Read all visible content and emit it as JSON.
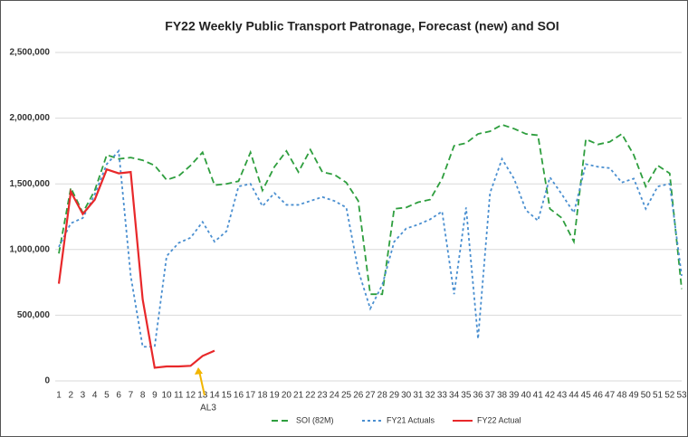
{
  "chart_data": {
    "type": "line",
    "title": "FY22 Weekly Public Transport Patronage,  Forecast (new) and SOI",
    "x": [
      1,
      2,
      3,
      4,
      5,
      6,
      7,
      8,
      9,
      10,
      11,
      12,
      13,
      14,
      15,
      16,
      17,
      18,
      19,
      20,
      21,
      22,
      23,
      24,
      25,
      26,
      27,
      28,
      29,
      30,
      31,
      32,
      33,
      34,
      35,
      36,
      37,
      38,
      39,
      40,
      41,
      42,
      43,
      44,
      45,
      46,
      47,
      48,
      49,
      50,
      51,
      52,
      53
    ],
    "xlim": [
      1,
      53
    ],
    "ylim": [
      0,
      2500000
    ],
    "yticks": [
      0,
      {
        "value": 500000,
        "label": "500,000"
      },
      {
        "value": 1000000,
        "label": "1,000,000"
      },
      {
        "value": 1500000,
        "label": "1,500,000"
      },
      {
        "value": 2000000,
        "label": "2,000,000"
      },
      {
        "value": 2500000,
        "label": "2,500,000"
      }
    ],
    "grid": true,
    "legend": "bottom",
    "series": [
      {
        "name": "SOI (82M)",
        "color": "#2e9e3e",
        "dash": "dashed",
        "values": [
          970000,
          1470000,
          1280000,
          1450000,
          1720000,
          1690000,
          1700000,
          1680000,
          1640000,
          1530000,
          1560000,
          1640000,
          1740000,
          1490000,
          1500000,
          1520000,
          1740000,
          1450000,
          1630000,
          1750000,
          1590000,
          1760000,
          1590000,
          1570000,
          1510000,
          1370000,
          660000,
          660000,
          1310000,
          1320000,
          1360000,
          1380000,
          1540000,
          1790000,
          1810000,
          1880000,
          1900000,
          1950000,
          1920000,
          1880000,
          1870000,
          1310000,
          1240000,
          1060000,
          1840000,
          1800000,
          1820000,
          1880000,
          1720000,
          1480000,
          1640000,
          1580000,
          700000
        ]
      },
      {
        "name": "FY21 Actuals",
        "color": "#4a8fd0",
        "dash": "dotted",
        "values": [
          1020000,
          1200000,
          1240000,
          1420000,
          1650000,
          1750000,
          800000,
          260000,
          260000,
          950000,
          1050000,
          1090000,
          1210000,
          1060000,
          1140000,
          1480000,
          1500000,
          1330000,
          1430000,
          1340000,
          1340000,
          1370000,
          1400000,
          1370000,
          1320000,
          840000,
          550000,
          730000,
          1060000,
          1160000,
          1190000,
          1230000,
          1290000,
          660000,
          1320000,
          320000,
          1430000,
          1690000,
          1540000,
          1300000,
          1220000,
          1550000,
          1420000,
          1280000,
          1650000,
          1630000,
          1620000,
          1510000,
          1540000,
          1310000,
          1480000,
          1500000,
          800000
        ]
      },
      {
        "name": "FY22 Actual",
        "color": "#e8282a",
        "dash": "solid",
        "values": [
          740000,
          1440000,
          1270000,
          1380000,
          1610000,
          1580000,
          1590000,
          620000,
          100000,
          110000,
          110000,
          115000,
          190000,
          230000,
          null,
          null,
          null,
          null,
          null,
          null,
          null,
          null,
          null,
          null,
          null,
          null,
          null,
          null,
          null,
          null,
          null,
          null,
          null,
          null,
          null,
          null,
          null,
          null,
          null,
          null,
          null,
          null,
          null,
          null,
          null,
          null,
          null,
          null,
          null,
          null,
          null,
          null,
          null
        ]
      }
    ],
    "annotations": [
      {
        "text": "AL3",
        "color": "#f2b500"
      }
    ]
  }
}
